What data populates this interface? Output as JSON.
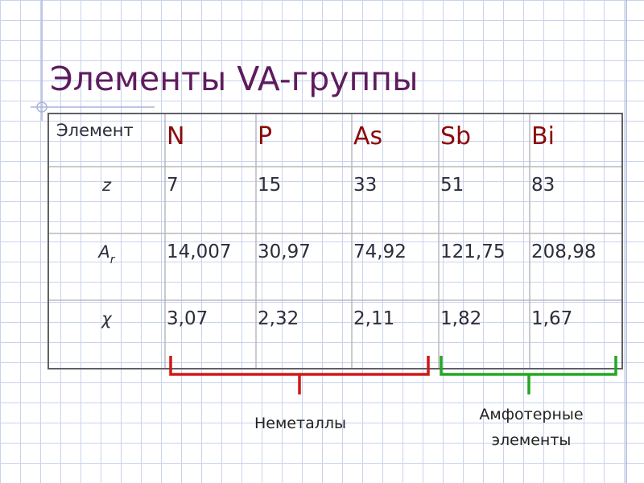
{
  "title": "Элементы VA-группы",
  "table": {
    "header": [
      "Элемент",
      "N",
      "P",
      "As",
      "Sb",
      "Bi"
    ],
    "rows": [
      {
        "label": "z",
        "cells": [
          "7",
          "15",
          "33",
          "51",
          "83"
        ]
      },
      {
        "label": "A",
        "label_sub": "r",
        "cells": [
          "14,007",
          "30,97",
          "74,92",
          "121,75",
          "208,98"
        ]
      },
      {
        "label": "χ",
        "cells": [
          "3,07",
          "2,32",
          "2,11",
          "1,82",
          "1,67"
        ]
      }
    ]
  },
  "groups": [
    {
      "label": "Неметаллы"
    },
    {
      "label_lines": [
        "Амфотерные",
        "элементы"
      ]
    }
  ]
}
